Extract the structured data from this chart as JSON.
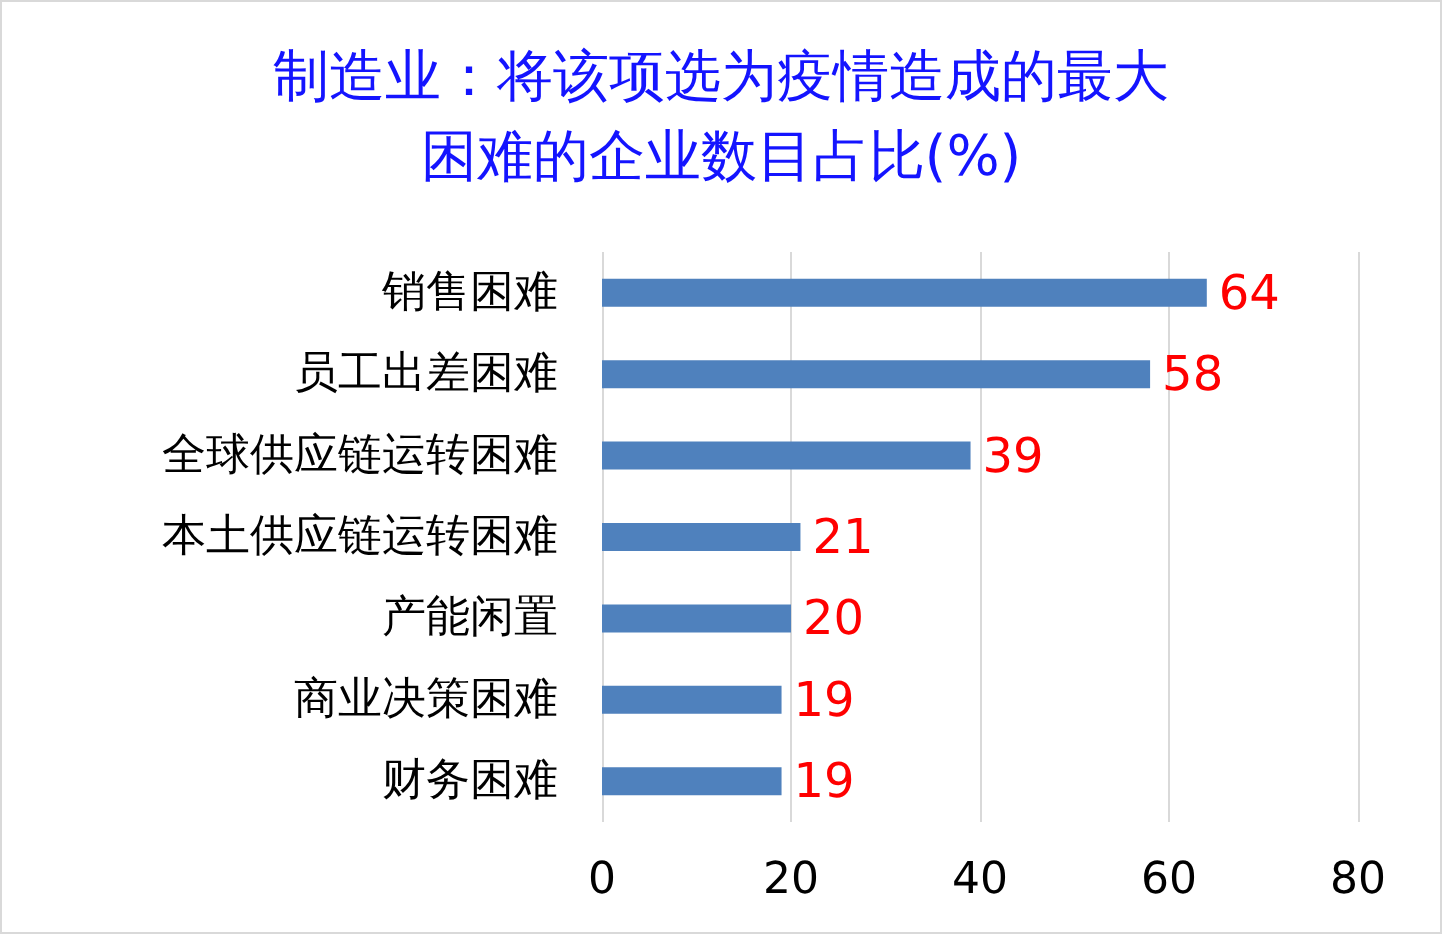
{
  "chart_data": {
    "type": "bar",
    "orientation": "horizontal",
    "title": "制造业：将该项选为疫情造成的最大困难的企业数目占比(%)",
    "categories": [
      "销售困难",
      "员工出差困难",
      "全球供应链运转困难",
      "本土供应链运转困难",
      "产能闲置",
      "商业决策困难",
      "财务困难"
    ],
    "values": [
      64,
      58,
      39,
      21,
      20,
      19,
      19
    ],
    "color": "#4f81bd",
    "xlim": [
      0,
      80
    ],
    "xticks": [
      0,
      20,
      40,
      60,
      80
    ],
    "grid": "x",
    "data_labels": true
  }
}
